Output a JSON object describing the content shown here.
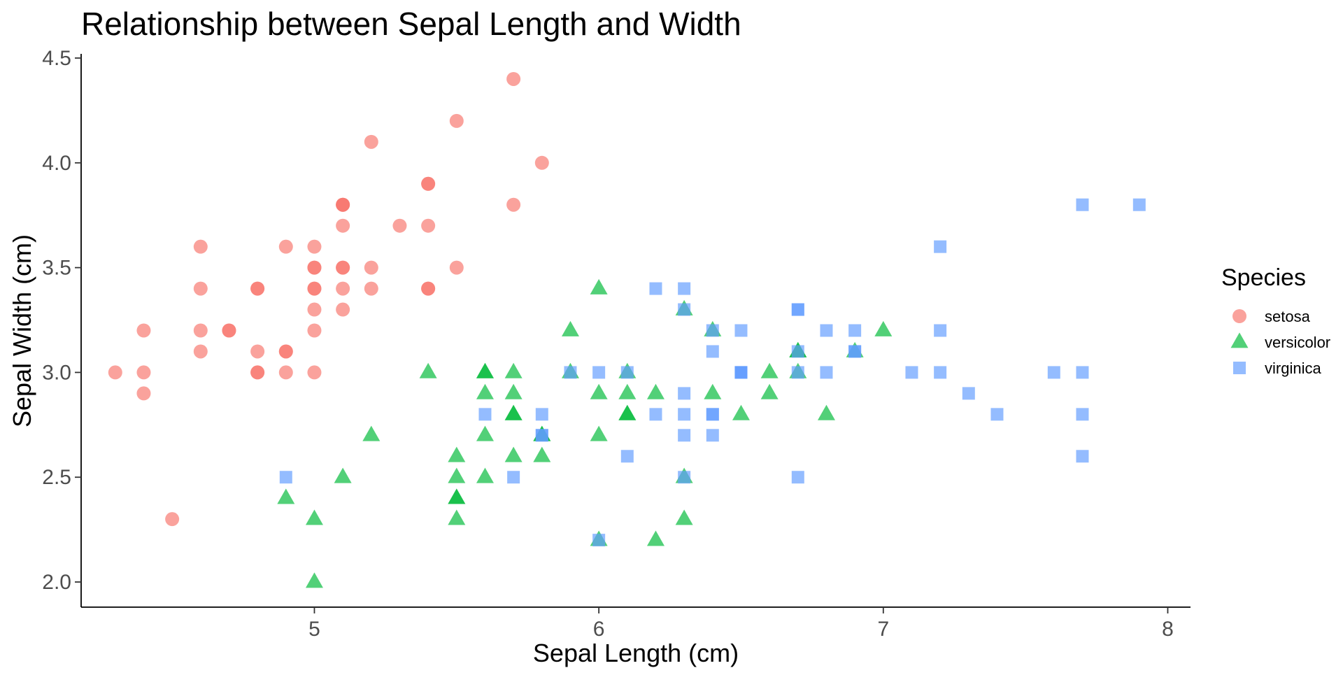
{
  "chart_data": {
    "type": "scatter",
    "title": "Relationship between Sepal Length and Width",
    "xlabel": "Sepal Length (cm)",
    "ylabel": "Sepal Width (cm)",
    "xlim": [
      4.18,
      8.08
    ],
    "ylim": [
      1.88,
      4.52
    ],
    "x_ticks": [
      5,
      6,
      7,
      8
    ],
    "x_tick_labels": [
      "5",
      "6",
      "7",
      "8"
    ],
    "y_ticks": [
      2.0,
      2.5,
      3.0,
      3.5,
      4.0,
      4.5
    ],
    "y_tick_labels": [
      "2.0",
      "2.5",
      "3.0",
      "3.5",
      "4.0",
      "4.5"
    ],
    "grid": false,
    "legend": {
      "title": "Species",
      "position": "right"
    },
    "series": [
      {
        "name": "setosa",
        "marker": "circle",
        "color": "#F8766D",
        "points": [
          [
            5.1,
            3.5
          ],
          [
            4.9,
            3.0
          ],
          [
            4.7,
            3.2
          ],
          [
            4.6,
            3.1
          ],
          [
            5.0,
            3.6
          ],
          [
            5.4,
            3.9
          ],
          [
            4.6,
            3.4
          ],
          [
            5.0,
            3.4
          ],
          [
            4.4,
            2.9
          ],
          [
            4.9,
            3.1
          ],
          [
            5.4,
            3.7
          ],
          [
            4.8,
            3.4
          ],
          [
            4.8,
            3.0
          ],
          [
            4.3,
            3.0
          ],
          [
            5.8,
            4.0
          ],
          [
            5.7,
            4.4
          ],
          [
            5.4,
            3.9
          ],
          [
            5.1,
            3.5
          ],
          [
            5.7,
            3.8
          ],
          [
            5.1,
            3.8
          ],
          [
            5.4,
            3.4
          ],
          [
            5.1,
            3.7
          ],
          [
            4.6,
            3.6
          ],
          [
            5.1,
            3.3
          ],
          [
            4.8,
            3.4
          ],
          [
            5.0,
            3.0
          ],
          [
            5.0,
            3.4
          ],
          [
            5.2,
            3.5
          ],
          [
            5.2,
            3.4
          ],
          [
            4.7,
            3.2
          ],
          [
            4.8,
            3.1
          ],
          [
            5.4,
            3.4
          ],
          [
            5.2,
            4.1
          ],
          [
            5.5,
            4.2
          ],
          [
            4.9,
            3.1
          ],
          [
            5.0,
            3.2
          ],
          [
            5.5,
            3.5
          ],
          [
            4.9,
            3.6
          ],
          [
            4.4,
            3.0
          ],
          [
            5.1,
            3.4
          ],
          [
            5.0,
            3.5
          ],
          [
            4.5,
            2.3
          ],
          [
            4.4,
            3.2
          ],
          [
            5.0,
            3.5
          ],
          [
            5.1,
            3.8
          ],
          [
            4.8,
            3.0
          ],
          [
            5.1,
            3.8
          ],
          [
            4.6,
            3.2
          ],
          [
            5.3,
            3.7
          ],
          [
            5.0,
            3.3
          ]
        ]
      },
      {
        "name": "versicolor",
        "marker": "triangle",
        "color": "#00BA38",
        "points": [
          [
            7.0,
            3.2
          ],
          [
            6.4,
            3.2
          ],
          [
            6.9,
            3.1
          ],
          [
            5.5,
            2.3
          ],
          [
            6.5,
            2.8
          ],
          [
            5.7,
            2.8
          ],
          [
            6.3,
            3.3
          ],
          [
            4.9,
            2.4
          ],
          [
            6.6,
            2.9
          ],
          [
            5.2,
            2.7
          ],
          [
            5.0,
            2.0
          ],
          [
            5.9,
            3.0
          ],
          [
            6.0,
            2.2
          ],
          [
            6.1,
            2.9
          ],
          [
            5.6,
            2.9
          ],
          [
            6.7,
            3.1
          ],
          [
            5.6,
            3.0
          ],
          [
            5.8,
            2.7
          ],
          [
            6.2,
            2.2
          ],
          [
            5.6,
            2.5
          ],
          [
            5.9,
            3.2
          ],
          [
            6.1,
            2.8
          ],
          [
            6.3,
            2.5
          ],
          [
            6.1,
            2.8
          ],
          [
            6.4,
            2.9
          ],
          [
            6.6,
            3.0
          ],
          [
            6.8,
            2.8
          ],
          [
            6.7,
            3.0
          ],
          [
            6.0,
            2.9
          ],
          [
            5.7,
            2.6
          ],
          [
            5.5,
            2.4
          ],
          [
            5.5,
            2.4
          ],
          [
            5.8,
            2.7
          ],
          [
            6.0,
            2.7
          ],
          [
            5.4,
            3.0
          ],
          [
            6.0,
            3.4
          ],
          [
            6.7,
            3.1
          ],
          [
            6.3,
            2.3
          ],
          [
            5.6,
            3.0
          ],
          [
            5.5,
            2.5
          ],
          [
            5.5,
            2.6
          ],
          [
            6.1,
            3.0
          ],
          [
            5.8,
            2.6
          ],
          [
            5.0,
            2.3
          ],
          [
            5.6,
            2.7
          ],
          [
            5.7,
            3.0
          ],
          [
            5.7,
            2.9
          ],
          [
            6.2,
            2.9
          ],
          [
            5.1,
            2.5
          ],
          [
            5.7,
            2.8
          ]
        ]
      },
      {
        "name": "virginica",
        "marker": "square",
        "color": "#619CFF",
        "points": [
          [
            6.3,
            3.3
          ],
          [
            5.8,
            2.7
          ],
          [
            7.1,
            3.0
          ],
          [
            6.3,
            2.9
          ],
          [
            6.5,
            3.0
          ],
          [
            7.6,
            3.0
          ],
          [
            4.9,
            2.5
          ],
          [
            7.3,
            2.9
          ],
          [
            6.7,
            2.5
          ],
          [
            7.2,
            3.6
          ],
          [
            6.5,
            3.2
          ],
          [
            6.4,
            2.7
          ],
          [
            6.8,
            3.0
          ],
          [
            5.7,
            2.5
          ],
          [
            5.8,
            2.8
          ],
          [
            6.4,
            3.2
          ],
          [
            6.5,
            3.0
          ],
          [
            7.7,
            3.8
          ],
          [
            7.7,
            2.6
          ],
          [
            6.0,
            2.2
          ],
          [
            6.9,
            3.2
          ],
          [
            5.6,
            2.8
          ],
          [
            7.7,
            2.8
          ],
          [
            6.3,
            2.7
          ],
          [
            6.7,
            3.3
          ],
          [
            7.2,
            3.2
          ],
          [
            6.2,
            2.8
          ],
          [
            6.1,
            3.0
          ],
          [
            6.4,
            2.8
          ],
          [
            7.2,
            3.0
          ],
          [
            7.4,
            2.8
          ],
          [
            7.9,
            3.8
          ],
          [
            6.4,
            2.8
          ],
          [
            6.3,
            2.8
          ],
          [
            6.1,
            2.6
          ],
          [
            7.7,
            3.0
          ],
          [
            6.3,
            3.4
          ],
          [
            6.4,
            3.1
          ],
          [
            6.0,
            3.0
          ],
          [
            6.9,
            3.1
          ],
          [
            6.7,
            3.1
          ],
          [
            6.9,
            3.1
          ],
          [
            5.8,
            2.7
          ],
          [
            6.8,
            3.2
          ],
          [
            6.7,
            3.3
          ],
          [
            6.7,
            3.0
          ],
          [
            6.3,
            2.5
          ],
          [
            6.5,
            3.0
          ],
          [
            6.2,
            3.4
          ],
          [
            5.9,
            3.0
          ]
        ]
      }
    ]
  }
}
